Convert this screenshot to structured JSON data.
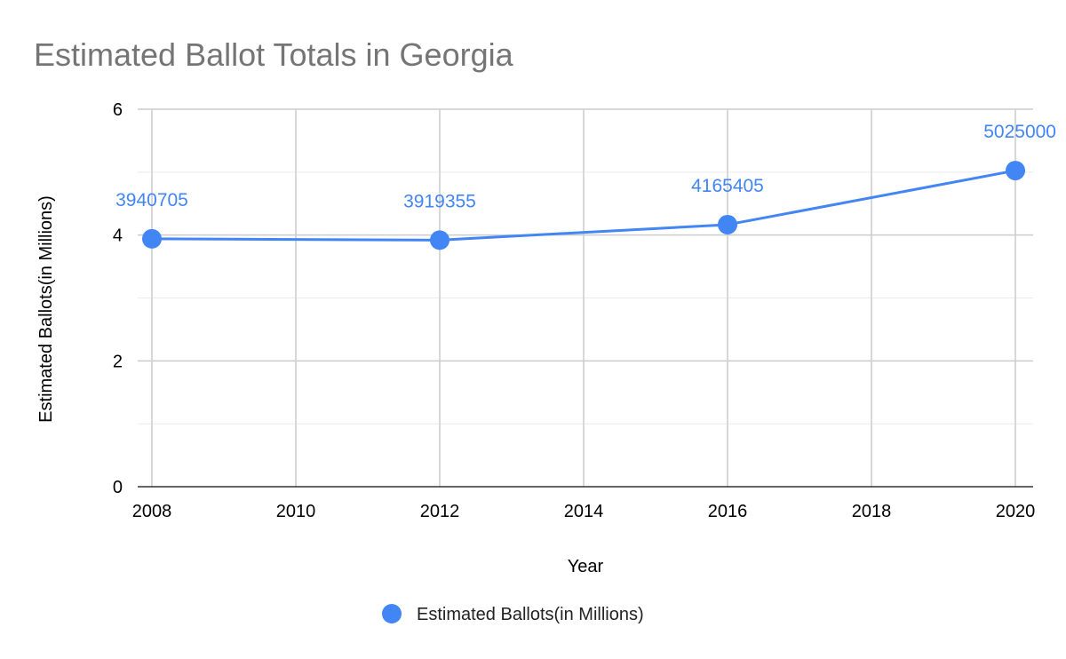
{
  "chart_data": {
    "type": "line",
    "title": "Estimated Ballot Totals in Georgia",
    "xlabel": "Year",
    "ylabel": "Estimated Ballots(in Millions)",
    "x": [
      2008,
      2012,
      2016,
      2020
    ],
    "series": [
      {
        "name": "Estimated Ballots(in Millions)",
        "values": [
          3.940705,
          3.919355,
          4.165405,
          5.025
        ],
        "labels": [
          "3940705",
          "3919355",
          "4165405",
          "5025000"
        ],
        "color": "#4285f4"
      }
    ],
    "xlim": [
      2008,
      2020
    ],
    "ylim": [
      0,
      6
    ],
    "x_ticks": [
      2008,
      2010,
      2012,
      2014,
      2016,
      2018,
      2020
    ],
    "y_ticks": [
      0,
      2,
      4,
      6
    ],
    "grid": true,
    "legend_position": "bottom"
  }
}
